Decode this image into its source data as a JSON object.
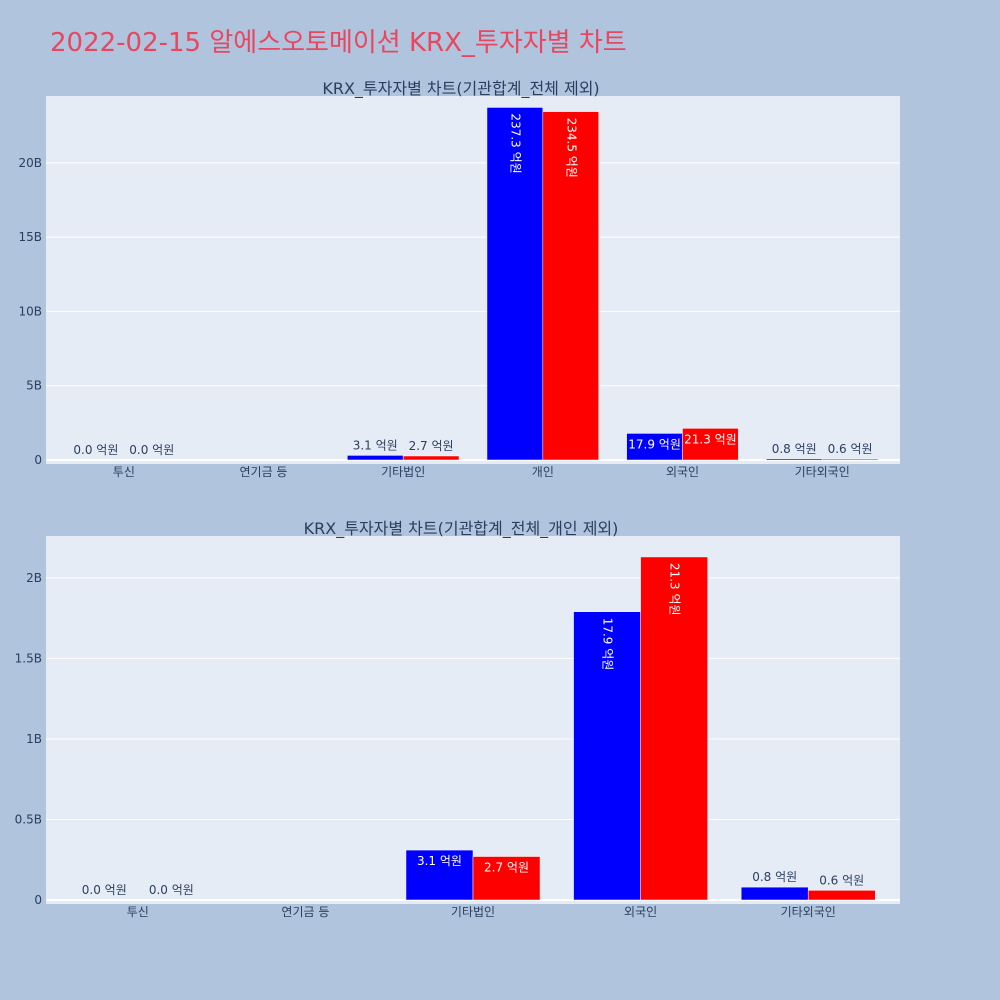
{
  "title": "2022-02-15 알에스오토메이션 KRX_투자자별 차트",
  "colors": {
    "buy": "#0000ff",
    "sell": "#ff0000",
    "title": "#e8475f",
    "plot_bg": "#e5ecf6",
    "page_bg": "#b0c4de"
  },
  "chart_data": [
    {
      "type": "bar",
      "title": "KRX_투자자별 차트(기관합계_전체 제외)",
      "categories": [
        "투신",
        "연기금 등",
        "기타법인",
        "개인",
        "외국인",
        "기타외국인"
      ],
      "series": [
        {
          "values": [
            0.0,
            0.0,
            0.31,
            23.73,
            1.79,
            0.08
          ],
          "labels": [
            "0.0 억원",
            "",
            "3.1 억원",
            "237.3 억원",
            "17.9 억원",
            "0.8 억원"
          ]
        },
        {
          "values": [
            0.0,
            0.0,
            0.27,
            23.45,
            2.13,
            0.06
          ],
          "labels": [
            "0.0 억원",
            "",
            "2.7 억원",
            "234.5 억원",
            "21.3 억원",
            "0.6 억원"
          ]
        }
      ],
      "yunit": "B",
      "yticks": [
        0,
        5,
        10,
        15,
        20
      ],
      "ytick_labels": [
        "0",
        "5B",
        "10B",
        "15B",
        "20B"
      ],
      "ylim": [
        0,
        24.5
      ]
    },
    {
      "type": "bar",
      "title": "KRX_투자자별 차트(기관합계_전체_개인 제외)",
      "categories": [
        "투신",
        "연기금 등",
        "기타법인",
        "외국인",
        "기타외국인"
      ],
      "series": [
        {
          "values": [
            0.0,
            0.0,
            0.31,
            1.79,
            0.08
          ],
          "labels": [
            "0.0 억원",
            "",
            "3.1 억원",
            "17.9 억원",
            "0.8 억원"
          ]
        },
        {
          "values": [
            0.0,
            0.0,
            0.27,
            2.13,
            0.06
          ],
          "labels": [
            "0.0 억원",
            "",
            "2.7 억원",
            "21.3 억원",
            "0.6 억원"
          ]
        }
      ],
      "yunit": "B",
      "yticks": [
        0,
        0.5,
        1,
        1.5,
        2
      ],
      "ytick_labels": [
        "0",
        "0.5B",
        "1B",
        "1.5B",
        "2B"
      ],
      "ylim": [
        0,
        2.26
      ]
    }
  ]
}
